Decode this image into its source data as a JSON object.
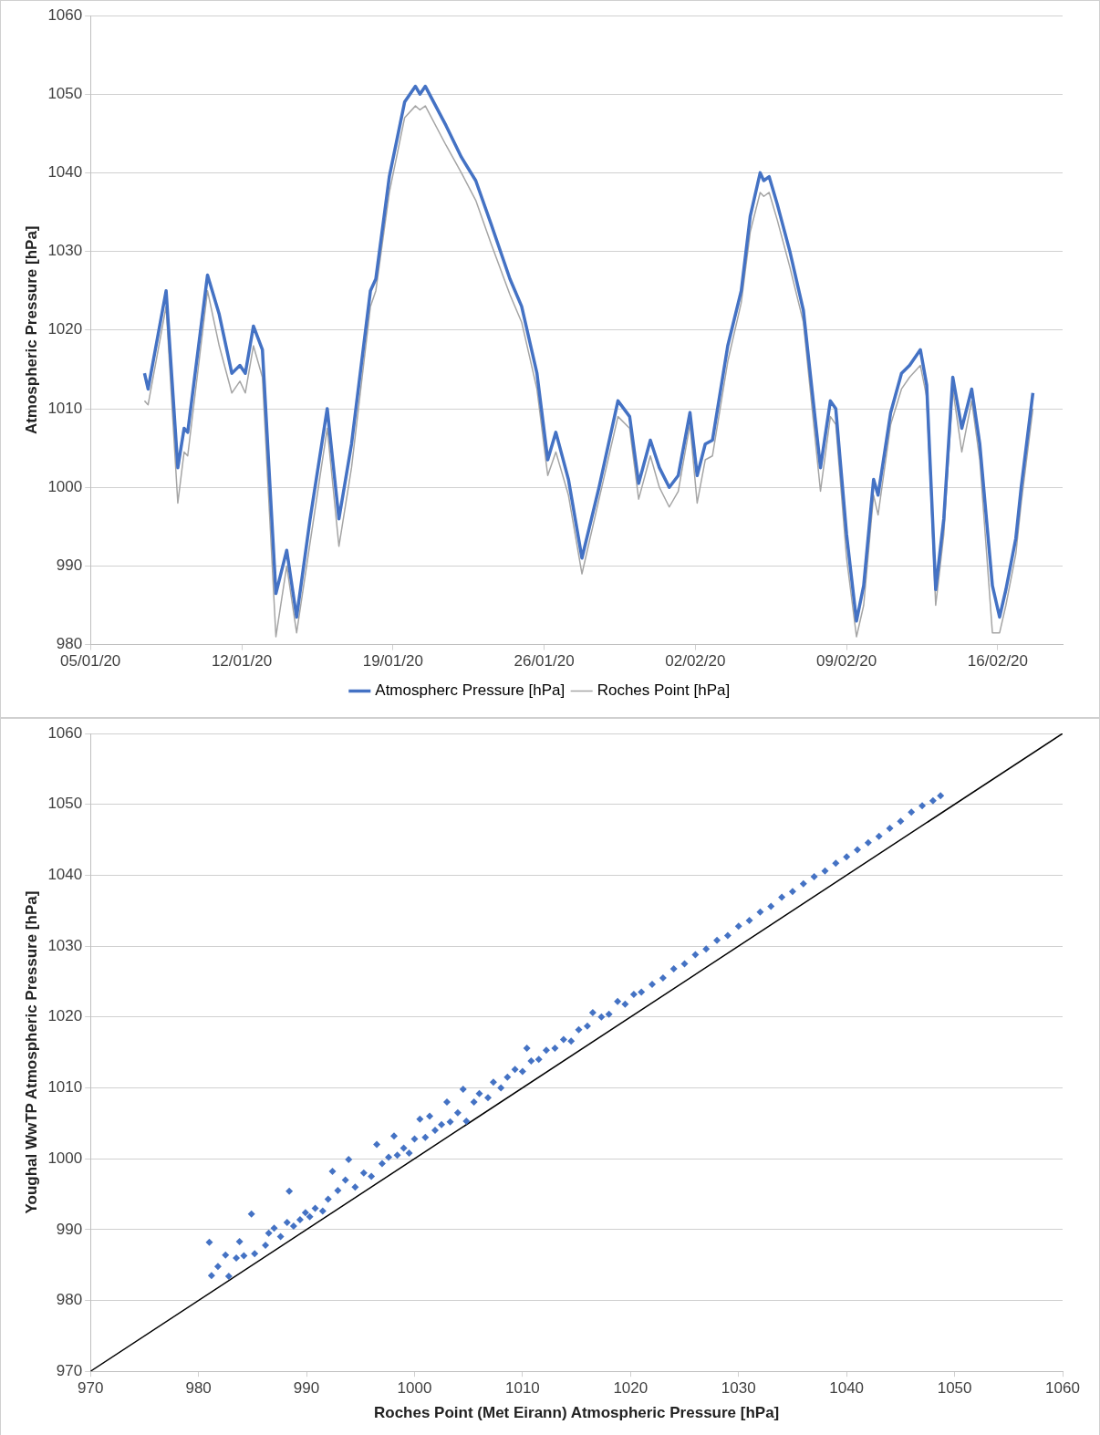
{
  "chart_data": [
    {
      "type": "line",
      "ylabel": "Atmospheric Pressure [hPa]",
      "legend": "bottom",
      "grid": "y",
      "marker": "none",
      "x": [
        "--01-07T12:00",
        "--01-07T16:00",
        "--01-08T12:00",
        "--01-09T01:00",
        "--01-09T08:00",
        "--01-09T12:00",
        "--01-10T10:00",
        "--01-10T23:00",
        "--01-11T13:00",
        "--01-11T22:00",
        "--01-12T04:00",
        "--01-12T13:00",
        "--01-12T23:00",
        "--01-13T14:00",
        "--01-14T02:00",
        "--01-14T13:00",
        "--01-15T04:00",
        "--01-15T23:00",
        "--01-16T12:00",
        "--01-17T02:00",
        "--01-17T23:00",
        "--01-18T05:00",
        "--01-18T20:00",
        "--01-19T13:00",
        "--01-20T01:00",
        "--01-20T06:00",
        "--01-20T12:00",
        "--01-21T11:00",
        "--01-22T04:00",
        "--01-22T20:00",
        "--01-23T13:00",
        "--01-24T10:00",
        "--01-24T23:00",
        "--01-25T16:00",
        "--01-26T04:00",
        "--01-26T13:00",
        "--01-27T03:00",
        "--01-27T18:00",
        "--01-28T13:00",
        "--01-29T10:00",
        "--01-29T23:00",
        "--01-30T09:00",
        "--01-30T22:00",
        "--01-31T08:00",
        "--01-31T19:00",
        "--02-01T05:00",
        "--02-01T18:00",
        "--02-02T02:00",
        "--02-02T11:00",
        "--02-02T19:00",
        "--02-03T12:00",
        "--02-04T03:00",
        "--02-04T13:00",
        "--02-05T00:00",
        "--02-05T04:00",
        "--02-05T10:00",
        "--02-05T19:00",
        "--02-06T09:00",
        "--02-07T00:00",
        "--02-07T19:00",
        "--02-08T06:00",
        "--02-08T12:00",
        "--02-09T00:00",
        "--02-09T11:00",
        "--02-09T19:00",
        "--02-10T06:00",
        "--02-10T11:00",
        "--02-11T01:00",
        "--02-11T13:00",
        "--02-11T22:00",
        "--02-12T10:00",
        "--02-12T17:00",
        "--02-13T03:00",
        "--02-13T12:00",
        "--02-13T22:00",
        "--02-14T08:00",
        "--02-14T19:00",
        "--02-15T04:00",
        "--02-15T18:00",
        "--02-16T02:00",
        "--02-16T09:00",
        "--02-16T20:00",
        "--02-17T02:00",
        "--02-17T15:00"
      ],
      "series": [
        {
          "name": "Atmospherc Pressure [hPa]",
          "color": "#4472c4",
          "values": [
            1014.5,
            1012.5,
            1025,
            1002.5,
            1007.5,
            1007,
            1027,
            1022,
            1014.5,
            1015.5,
            1014.5,
            1020.5,
            1017.5,
            986.5,
            992,
            983.5,
            996,
            1010,
            996,
            1005.5,
            1025,
            1026.5,
            1039.5,
            1049,
            1051,
            1050,
            1051,
            1046,
            1042,
            1039,
            1033.5,
            1026.5,
            1023,
            1014.5,
            1003.5,
            1007,
            1001,
            991,
            1000,
            1011,
            1009,
            1000.5,
            1006,
            1002.5,
            1000,
            1001.5,
            1009.5,
            1001.5,
            1005.5,
            1006,
            1018,
            1025,
            1034.5,
            1040,
            1039,
            1039.5,
            1036,
            1030,
            1022.5,
            1002.5,
            1011,
            1010,
            994,
            983,
            987.5,
            1001,
            999,
            1009.5,
            1014.5,
            1015.5,
            1017.5,
            1013,
            987,
            996,
            1014,
            1007.5,
            1012.5,
            1005.5,
            987.5,
            983.5,
            987,
            993.5,
            1000,
            1012
          ]
        },
        {
          "name": "Roches Point [hPa]",
          "color": "#a5a5a5",
          "values": [
            1011,
            1010.5,
            1023,
            998,
            1004.5,
            1004,
            1025,
            1018,
            1012,
            1013.5,
            1012,
            1018,
            1014,
            981,
            990,
            981.5,
            993,
            1007.5,
            992.5,
            1002.5,
            1023,
            1025,
            1037.5,
            1047,
            1048.5,
            1048,
            1048.5,
            1043.5,
            1040,
            1036.5,
            1031,
            1024.5,
            1021,
            1012.5,
            1001.5,
            1004.5,
            999,
            989,
            998.5,
            1009,
            1007.5,
            998.5,
            1004,
            1000,
            997.5,
            999.5,
            1008,
            998,
            1003.5,
            1004,
            1016,
            1023.5,
            1032.5,
            1037.5,
            1037,
            1037.5,
            1034,
            1028,
            1021,
            999.5,
            1009,
            1008,
            991,
            981,
            985,
            999,
            996.5,
            1008,
            1012.5,
            1014,
            1015.5,
            1011.5,
            985,
            994,
            1012.5,
            1004.5,
            1011,
            1003.5,
            981.5,
            981.5,
            985,
            991.5,
            998,
            1010
          ]
        }
      ],
      "xlim": [
        "--01-05",
        "--02-19"
      ],
      "xticks": [
        {
          "value": "--01-05",
          "label": "05/01/20"
        },
        {
          "value": "--01-12",
          "label": "12/01/20"
        },
        {
          "value": "--01-19",
          "label": "19/01/20"
        },
        {
          "value": "--01-26",
          "label": "26/01/20"
        },
        {
          "value": "--02-02",
          "label": "02/02/20"
        },
        {
          "value": "--02-09",
          "label": "09/02/20"
        },
        {
          "value": "--02-16",
          "label": "16/02/20"
        }
      ],
      "ylim": [
        980,
        1060
      ],
      "yticks": [
        980,
        990,
        1000,
        1010,
        1020,
        1030,
        1040,
        1050,
        1060
      ]
    },
    {
      "type": "scatter",
      "xlabel": "Roches Point (Met Eirann) Atmospheric Pressure [hPa]",
      "ylabel": "Youghal WwTP Atmospheric Pressure [hPa]",
      "grid": "y",
      "marker": "diamond",
      "series": [
        {
          "color": "#4472c4",
          "x": [
            981.0,
            981.2,
            981.8,
            982.5,
            982.8,
            983.5,
            983.8,
            984.2,
            984.9,
            985.2,
            986.2,
            986.5,
            987.0,
            987.6,
            988.2,
            988.4,
            988.8,
            989.4,
            989.9,
            990.3,
            990.8,
            991.5,
            992.0,
            992.4,
            992.9,
            993.6,
            993.9,
            994.5,
            995.3,
            996.0,
            996.5,
            997.0,
            997.6,
            998.1,
            998.4,
            999.0,
            999.5,
            1000.0,
            1000.5,
            1001.0,
            1001.4,
            1001.9,
            1002.5,
            1003.0,
            1003.3,
            1004.0,
            1004.5,
            1004.8,
            1005.5,
            1006.0,
            1006.8,
            1007.3,
            1008.0,
            1008.6,
            1009.3,
            1010.0,
            1010.4,
            1010.8,
            1011.5,
            1012.2,
            1013.0,
            1013.8,
            1014.5,
            1015.2,
            1016.0,
            1016.5,
            1017.3,
            1018.0,
            1018.8,
            1019.5,
            1020.3,
            1021.0,
            1022.0,
            1023.0,
            1024.0,
            1025.0,
            1026.0,
            1027.0,
            1028.0,
            1029.0,
            1030.0,
            1031.0,
            1032.0,
            1033.0,
            1034.0,
            1035.0,
            1036.0,
            1037.0,
            1038.0,
            1039.0,
            1040.0,
            1041.0,
            1042.0,
            1043.0,
            1044.0,
            1045.0,
            1046.0,
            1047.0,
            1048.0,
            1048.7
          ],
          "values": [
            988.2,
            983.5,
            984.8,
            986.4,
            983.4,
            986.0,
            988.3,
            986.3,
            992.2,
            986.6,
            987.8,
            989.5,
            990.2,
            989.0,
            991.0,
            995.4,
            990.5,
            991.4,
            992.4,
            991.8,
            993.0,
            992.6,
            994.3,
            998.2,
            995.5,
            997.0,
            999.9,
            996.0,
            998.0,
            997.5,
            1002.0,
            999.3,
            1000.2,
            1003.2,
            1000.5,
            1001.5,
            1000.8,
            1002.8,
            1005.6,
            1003.0,
            1006.0,
            1004.0,
            1004.8,
            1008.0,
            1005.2,
            1006.5,
            1009.8,
            1005.3,
            1008.0,
            1009.2,
            1008.6,
            1010.8,
            1010.0,
            1011.5,
            1012.6,
            1012.3,
            1015.6,
            1013.8,
            1014.0,
            1015.3,
            1015.6,
            1016.8,
            1016.6,
            1018.2,
            1018.7,
            1020.6,
            1020.0,
            1020.4,
            1022.2,
            1021.8,
            1023.2,
            1023.5,
            1024.6,
            1025.5,
            1026.8,
            1027.5,
            1028.8,
            1029.6,
            1030.8,
            1031.5,
            1032.8,
            1033.6,
            1034.8,
            1035.6,
            1036.9,
            1037.7,
            1038.8,
            1039.8,
            1040.6,
            1041.7,
            1042.6,
            1043.6,
            1044.6,
            1045.5,
            1046.6,
            1047.6,
            1048.9,
            1049.8,
            1050.5,
            1051.2
          ]
        },
        {
          "type": "line",
          "marker": "none",
          "color": "#000000",
          "x": [
            970,
            1060
          ],
          "values": [
            970,
            1060
          ]
        }
      ],
      "xlim": [
        970,
        1060
      ],
      "xticks": [
        970,
        980,
        990,
        1000,
        1010,
        1020,
        1030,
        1040,
        1050,
        1060
      ],
      "ylim": [
        970,
        1060
      ],
      "yticks": [
        970,
        980,
        990,
        1000,
        1010,
        1020,
        1030,
        1040,
        1050,
        1060
      ]
    }
  ]
}
